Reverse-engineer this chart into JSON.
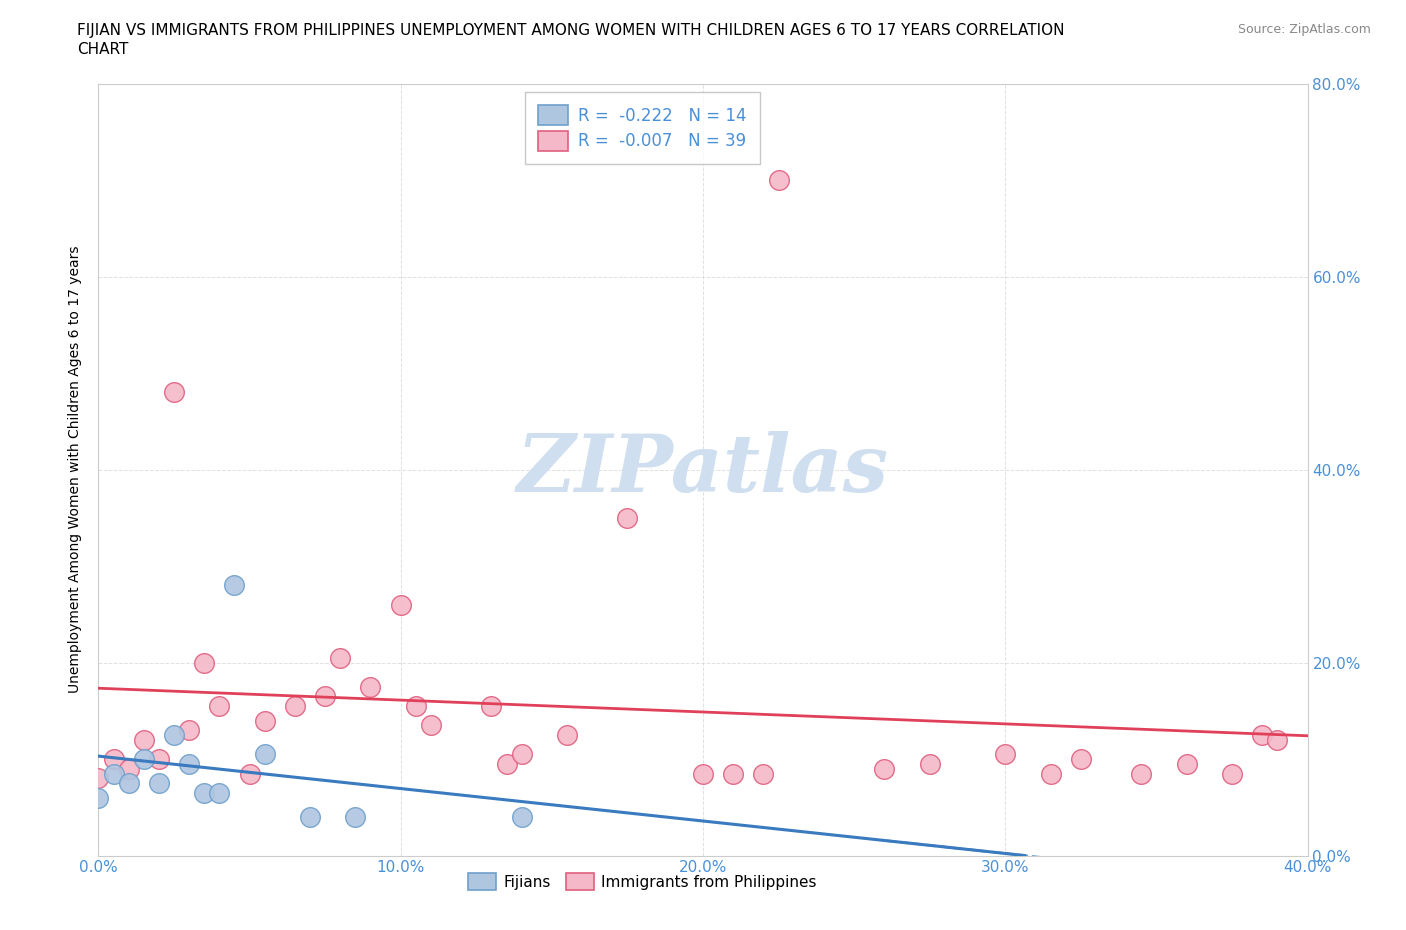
{
  "title_line1": "FIJIAN VS IMMIGRANTS FROM PHILIPPINES UNEMPLOYMENT AMONG WOMEN WITH CHILDREN AGES 6 TO 17 YEARS CORRELATION",
  "title_line2": "CHART",
  "source": "Source: ZipAtlas.com",
  "xlim": [
    0.0,
    0.4
  ],
  "ylim": [
    0.0,
    0.8
  ],
  "fijian_color": "#aec6e0",
  "philippines_color": "#f5b8c8",
  "fijian_edge": "#6fa0cc",
  "philippines_edge": "#e06080",
  "regression_fijian_color": "#3a7abf",
  "regression_philippines_color": "#e0405a",
  "watermark_color": "#d0dff0",
  "fijian_x": [
    0.0,
    0.005,
    0.01,
    0.015,
    0.02,
    0.025,
    0.03,
    0.035,
    0.04,
    0.045,
    0.055,
    0.07,
    0.085,
    0.14
  ],
  "fijian_y": [
    0.06,
    0.085,
    0.075,
    0.1,
    0.075,
    0.125,
    0.095,
    0.065,
    0.065,
    0.28,
    0.105,
    0.04,
    0.04,
    0.04
  ],
  "philippines_x": [
    0.0,
    0.005,
    0.01,
    0.015,
    0.02,
    0.025,
    0.03,
    0.035,
    0.04,
    0.05,
    0.055,
    0.065,
    0.075,
    0.08,
    0.09,
    0.1,
    0.105,
    0.11,
    0.13,
    0.135,
    0.14,
    0.155,
    0.175,
    0.2,
    0.21,
    0.22,
    0.225,
    0.26,
    0.275,
    0.3,
    0.315,
    0.325,
    0.345,
    0.36,
    0.375,
    0.385,
    0.39
  ],
  "philippines_y": [
    0.08,
    0.1,
    0.09,
    0.12,
    0.1,
    0.48,
    0.13,
    0.2,
    0.155,
    0.085,
    0.14,
    0.155,
    0.165,
    0.205,
    0.175,
    0.26,
    0.155,
    0.135,
    0.155,
    0.095,
    0.105,
    0.125,
    0.35,
    0.085,
    0.085,
    0.085,
    0.7,
    0.09,
    0.095,
    0.105,
    0.085,
    0.1,
    0.085,
    0.095,
    0.085,
    0.125,
    0.12
  ],
  "ylabel": "Unemployment Among Women with Children Ages 6 to 17 years",
  "tick_color": "#4a90d9",
  "grid_color": "#cccccc",
  "title_fontsize": 11,
  "ylabel_fontsize": 10,
  "tick_fontsize": 11
}
